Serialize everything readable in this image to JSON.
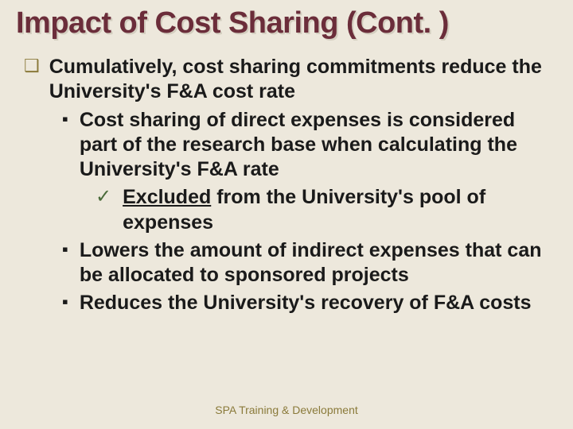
{
  "colors": {
    "background": "#ede8dc",
    "title": "#6b2d3a",
    "title_shadow": "#d4cfc0",
    "body_text": "#1a1a1a",
    "bullet_l1": "#8a7a3a",
    "bullet_l2": "#1a1a1a",
    "bullet_l3": "#4a6b3a",
    "footer": "#8a7a3a"
  },
  "typography": {
    "title_fontsize": 38,
    "body_fontsize": 25,
    "footer_fontsize": 14,
    "font_family": "Arial",
    "body_weight": "bold"
  },
  "markers": {
    "l1": "❑",
    "l2": "▪",
    "l3": "✓"
  },
  "title": "Impact of Cost Sharing (Cont. )",
  "bullets": {
    "l1_0": "Cumulatively, cost sharing commitments reduce the University's F&A cost rate",
    "l2_0": "Cost sharing of direct expenses is considered part of the research base when calculating the University's F&A rate",
    "l3_0_underlined": "Excluded",
    "l3_0_rest": " from the University's pool of expenses",
    "l2_1": "Lowers the amount of indirect expenses that can be allocated to sponsored projects",
    "l2_2": "Reduces the University's recovery of F&A costs"
  },
  "footer": "SPA Training & Development"
}
